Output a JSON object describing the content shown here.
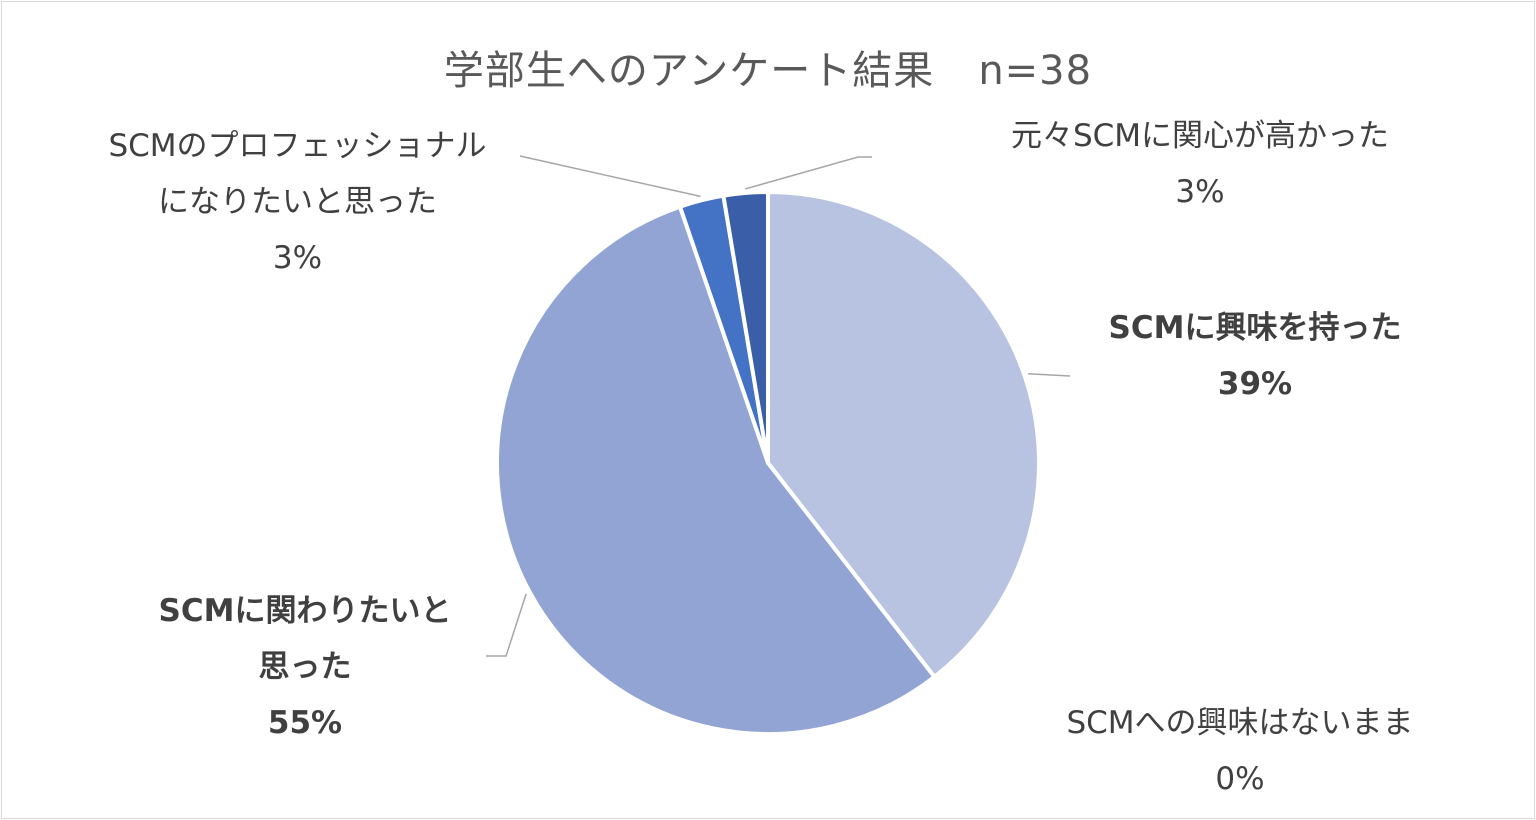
{
  "chart_data": {
    "type": "pie",
    "title": "学部生へのアンケート結果",
    "subtitle": "n=38",
    "start_angle_deg": 0,
    "direction": "clockwise",
    "slices": [
      {
        "label_lines": [
          "SCMに興味を持った"
        ],
        "percent_label": "39%",
        "value": 15,
        "color": "#b8c3e2",
        "bold": true
      },
      {
        "label_lines": [
          "SCMへの興味はないまま"
        ],
        "percent_label": "0%",
        "value": 0,
        "color": "#a9b6db",
        "bold": false
      },
      {
        "label_lines": [
          "SCMに関わりたいと",
          "思った"
        ],
        "percent_label": "55%",
        "value": 21,
        "color": "#91a4d4",
        "bold": true
      },
      {
        "label_lines": [
          "SCMのプロフェッショナル",
          "になりたいと思った"
        ],
        "percent_label": "3%",
        "value": 1,
        "color": "#4472c4",
        "bold": false
      },
      {
        "label_lines": [
          "元々SCMに関心が高かった"
        ],
        "percent_label": "3%",
        "value": 1,
        "color": "#3a5fa8",
        "bold": false
      }
    ],
    "legend": "none",
    "data_labels": "category and percentage, outside with leader lines"
  }
}
